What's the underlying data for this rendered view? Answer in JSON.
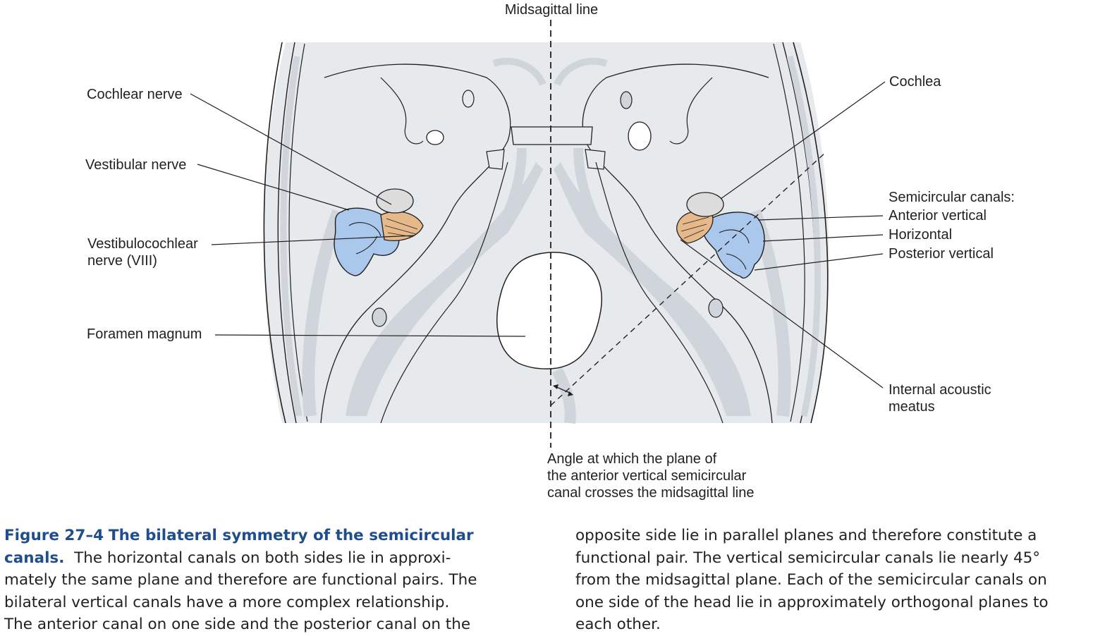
{
  "figure": {
    "labels": {
      "midsagittal_line": "Midsagittal line",
      "cochlear_nerve": "Cochlear nerve",
      "vestibular_nerve": "Vestibular nerve",
      "vestibulocochlear_line1": "Vestibulocochlear",
      "vestibulocochlear_line2": "nerve (VIII)",
      "foramen_magnum": "Foramen magnum",
      "cochlea": "Cochlea",
      "semicircular_canals": "Semicircular canals:",
      "anterior_vertical": "Anterior vertical",
      "horizontal": "Horizontal",
      "posterior_vertical": "Posterior vertical",
      "internal_acoustic_line1": "Internal acoustic",
      "internal_acoustic_line2": "meatus",
      "angle_line1": "Angle at which the plane of",
      "angle_line2": "the anterior vertical semicircular",
      "angle_line3": "canal crosses the midsagittal line"
    },
    "colors": {
      "skull_fill": "#e7eaed",
      "skull_shade": "#cfd5db",
      "outline": "#231f20",
      "labyrinth": "#a9c8ec",
      "nerve": "#e6b98a",
      "cochlea_cap": "#dcdcdc"
    }
  },
  "caption": {
    "number": "Figure 27–4",
    "title_part1": "The bilateral symmetry of the semicircular",
    "title_part2": "canals.",
    "col1_line1": "The horizontal canals on both sides lie in approxi-",
    "col1_line2": "mately the same plane and therefore are functional pairs. The",
    "col1_line3": "bilateral vertical canals have a more complex relationship.",
    "col1_line4": "The anterior canal on one side and the posterior canal on the",
    "col2_line1": "opposite side lie in parallel planes and therefore constitute a",
    "col2_line2": "functional pair. The vertical semicircular canals lie nearly 45°",
    "col2_line3": "from the midsagittal plane. Each of the semicircular canals on",
    "col2_line4": "one side of the head lie in approximately orthogonal planes to",
    "col2_line5": "each other."
  }
}
